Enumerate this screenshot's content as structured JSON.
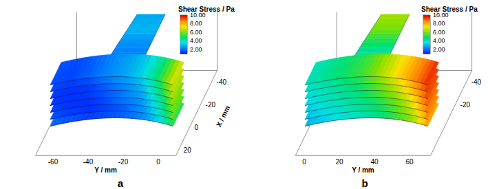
{
  "chart_data": [
    {
      "type": "surface3d",
      "label": "a",
      "x_label": "X / mm",
      "y_label": "Y / mm",
      "xlim": [
        25,
        -50
      ],
      "ylim": [
        -70,
        10
      ],
      "xticks": [
        20,
        0,
        -20,
        -40
      ],
      "yticks": [
        -60,
        -40,
        -20,
        0
      ],
      "y_stations": [
        -64,
        -54,
        -44,
        -34,
        -24,
        -14,
        -4,
        6
      ],
      "layers": [
        [
          2.0,
          1.8,
          1.6,
          1.8,
          2.0,
          2.4,
          3.5,
          5.5
        ],
        [
          1.8,
          1.6,
          1.5,
          1.7,
          2.0,
          2.5,
          3.8,
          6.0
        ],
        [
          1.7,
          1.5,
          1.5,
          1.8,
          2.2,
          2.6,
          4.0,
          6.2
        ],
        [
          1.6,
          1.5,
          1.6,
          1.9,
          2.3,
          2.8,
          4.2,
          6.5
        ],
        [
          1.6,
          1.5,
          1.6,
          2.0,
          2.4,
          3.0,
          4.5,
          6.8
        ],
        [
          1.7,
          1.6,
          1.8,
          2.2,
          2.6,
          3.2,
          4.8,
          7.0
        ],
        [
          1.8,
          1.7,
          2.0,
          2.4,
          2.8,
          3.4,
          5.0,
          7.2
        ]
      ],
      "branch_y": [
        -38,
        -18
      ],
      "branch_x": [
        -7,
        -20,
        -32,
        -45
      ],
      "branch_values": [
        2.2,
        2.5,
        3.0,
        2.8
      ],
      "colorbar": {
        "title": "Shear Stress / Pa",
        "range": [
          1,
          10
        ],
        "ticks": [
          {
            "value": 2,
            "label": "2.00"
          },
          {
            "value": 4,
            "label": "4.00"
          },
          {
            "value": 6,
            "label": "6.00"
          },
          {
            "value": 8,
            "label": "8.00"
          },
          {
            "value": 10,
            "label": "10.00"
          }
        ],
        "colors": [
          "#0000ff",
          "#0080ff",
          "#00e0e0",
          "#00e070",
          "#80e000",
          "#ffe000",
          "#ff8000",
          "#e00000"
        ]
      }
    },
    {
      "type": "surface3d",
      "label": "b",
      "y_label": "Y / mm",
      "xlim": [
        25,
        -50
      ],
      "ylim": [
        -5,
        72
      ],
      "xticks": [
        -20,
        -40
      ],
      "yticks": [
        0,
        20,
        40,
        60
      ],
      "y_stations": [
        -2,
        8,
        18,
        28,
        38,
        48,
        58,
        68
      ],
      "layers": [
        [
          3.0,
          3.4,
          3.8,
          4.2,
          4.8,
          5.5,
          6.5,
          8.5
        ],
        [
          3.2,
          3.6,
          4.0,
          4.5,
          5.0,
          5.8,
          6.8,
          8.8
        ],
        [
          3.3,
          3.8,
          4.2,
          4.7,
          5.3,
          6.0,
          7.2,
          9.0
        ],
        [
          3.5,
          4.0,
          4.4,
          4.9,
          5.6,
          6.4,
          7.5,
          9.2
        ],
        [
          3.6,
          4.1,
          4.6,
          5.1,
          5.9,
          6.8,
          7.9,
          9.4
        ],
        [
          3.8,
          4.3,
          4.8,
          5.3,
          6.2,
          7.1,
          8.2,
          9.5
        ],
        [
          4.0,
          4.5,
          5.0,
          5.5,
          6.5,
          7.5,
          8.5,
          9.6
        ]
      ],
      "branch_y": [
        18,
        38
      ],
      "branch_x": [
        -7,
        -20,
        -32,
        -45
      ],
      "branch_values": [
        4.0,
        5.0,
        6.0,
        6.5
      ],
      "colorbar": {
        "title": "Shear Stress / Pa",
        "range": [
          1,
          10
        ],
        "ticks": [
          {
            "value": 2,
            "label": "2.00"
          },
          {
            "value": 4,
            "label": "4.00"
          },
          {
            "value": 6,
            "label": "6.00"
          },
          {
            "value": 8,
            "label": "8.00"
          },
          {
            "value": 10,
            "label": "10.00"
          }
        ],
        "colors": [
          "#0000ff",
          "#0080ff",
          "#00e0e0",
          "#00e070",
          "#80e000",
          "#ffe000",
          "#ff8000",
          "#e00000"
        ]
      }
    }
  ]
}
